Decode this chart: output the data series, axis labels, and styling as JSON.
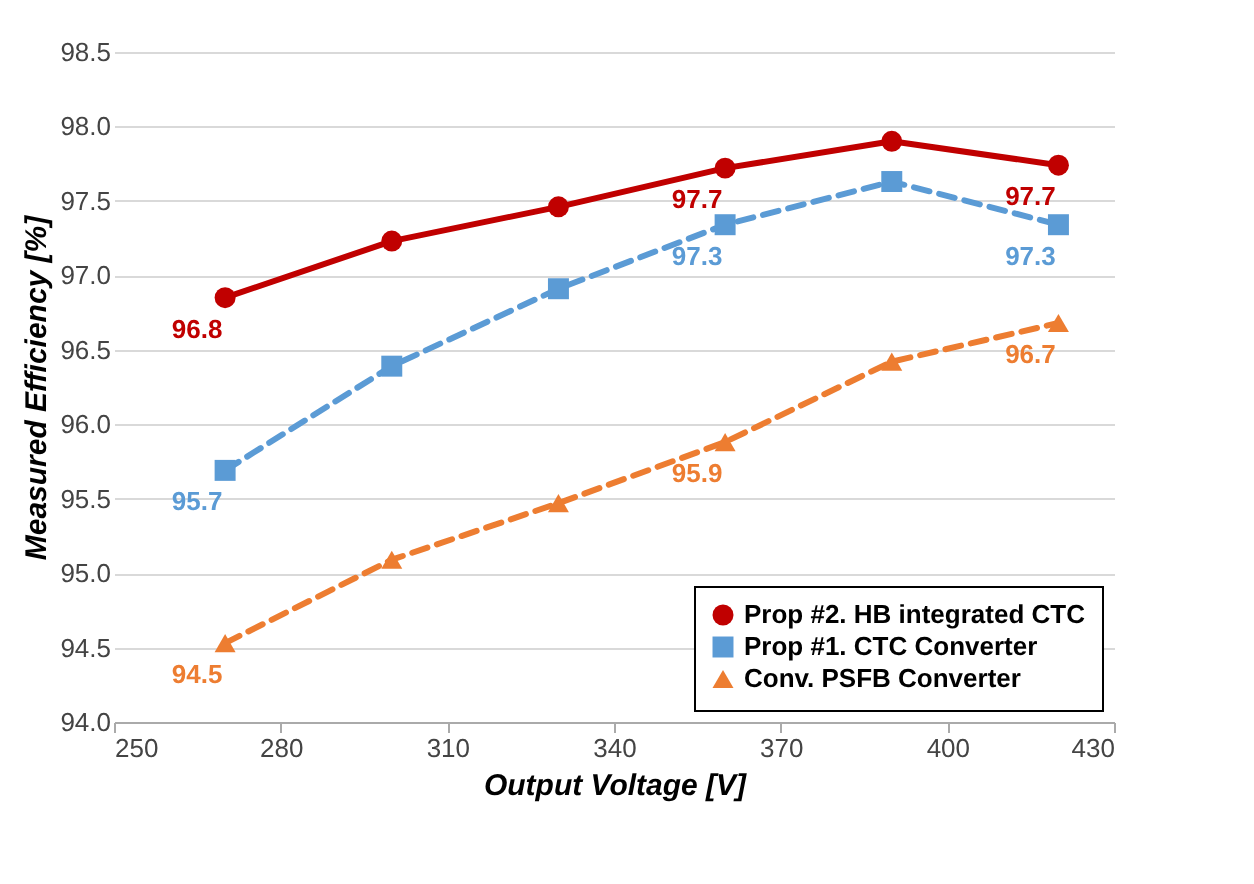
{
  "chart_data": {
    "type": "line",
    "xlabel": "Output Voltage [V]",
    "ylabel": "Measured Efficiency [%]",
    "x": [
      270,
      300,
      330,
      360,
      390,
      420
    ],
    "xlim": [
      250,
      430
    ],
    "xticks": [
      250,
      280,
      310,
      340,
      370,
      400,
      430
    ],
    "ylim": [
      94,
      98.5
    ],
    "yticks": [
      {
        "value": 94,
        "label": "94.0"
      },
      94.5,
      {
        "value": 95,
        "label": "95.0"
      },
      95.5,
      {
        "value": 96,
        "label": "96.0"
      },
      96.5,
      {
        "value": 97,
        "label": "97.0"
      },
      97.5,
      {
        "value": 98,
        "label": "98.0"
      },
      98.5
    ],
    "grid": "y",
    "legend": "bottom right",
    "series": [
      {
        "name": "Prop #2. HB integrated CTC",
        "color": "#c00000",
        "marker": "circle",
        "line_style": "solid",
        "values": [
          96.85,
          97.23,
          97.46,
          97.72,
          97.9,
          97.74
        ],
        "value_labels": [
          "96.8",
          null,
          null,
          "97.7",
          null,
          "97.7"
        ]
      },
      {
        "name": "Prop #1. CTC Converter",
        "color": "#5b9bd5",
        "marker": "square",
        "line_style": "dashed",
        "values": [
          95.69,
          96.39,
          96.91,
          97.34,
          97.63,
          97.34
        ],
        "value_labels": [
          "95.7",
          null,
          null,
          "97.3",
          null,
          "97.3"
        ]
      },
      {
        "name": "Conv. PSFB Converter",
        "color": "#ed7d31",
        "marker": "triangle",
        "line_style": "dashed",
        "values": [
          94.53,
          95.09,
          95.47,
          95.88,
          96.42,
          96.68
        ],
        "value_labels": [
          "94.5",
          null,
          null,
          "95.9",
          null,
          "96.7"
        ]
      }
    ]
  }
}
